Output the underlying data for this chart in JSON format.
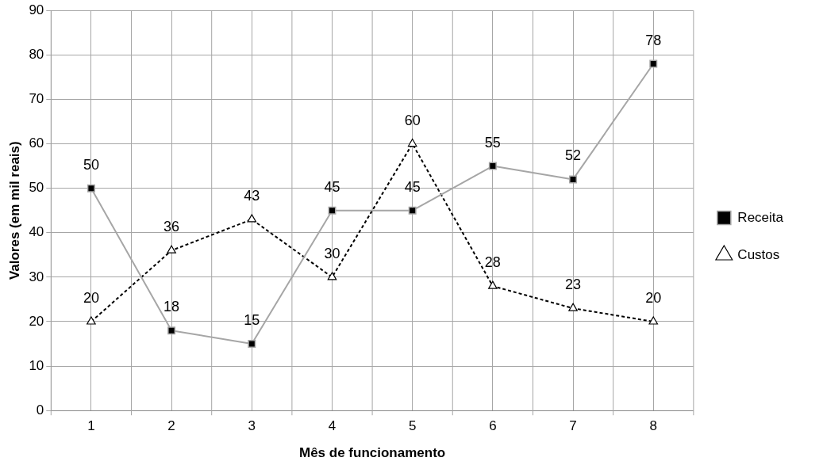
{
  "chart_data": {
    "type": "line",
    "xlabel": "Mês de funcionamento",
    "ylabel": "Valores (em mil reais)",
    "categories": [
      "1",
      "2",
      "3",
      "4",
      "5",
      "6",
      "7",
      "8"
    ],
    "series": [
      {
        "name": "Receita",
        "color": "#a6a6a6",
        "marker": "square",
        "line_style": "solid",
        "values": [
          50,
          18,
          15,
          45,
          45,
          55,
          52,
          78
        ]
      },
      {
        "name": "Custos",
        "color": "#000000",
        "marker": "triangle",
        "line_style": "dashed",
        "values": [
          20,
          36,
          43,
          30,
          60,
          28,
          23,
          20
        ]
      }
    ],
    "ylim": [
      0,
      90
    ],
    "yticks": [
      0,
      10,
      20,
      30,
      40,
      50,
      60,
      70,
      80,
      90
    ],
    "grid": true,
    "legend": "right",
    "data_labels": true
  }
}
